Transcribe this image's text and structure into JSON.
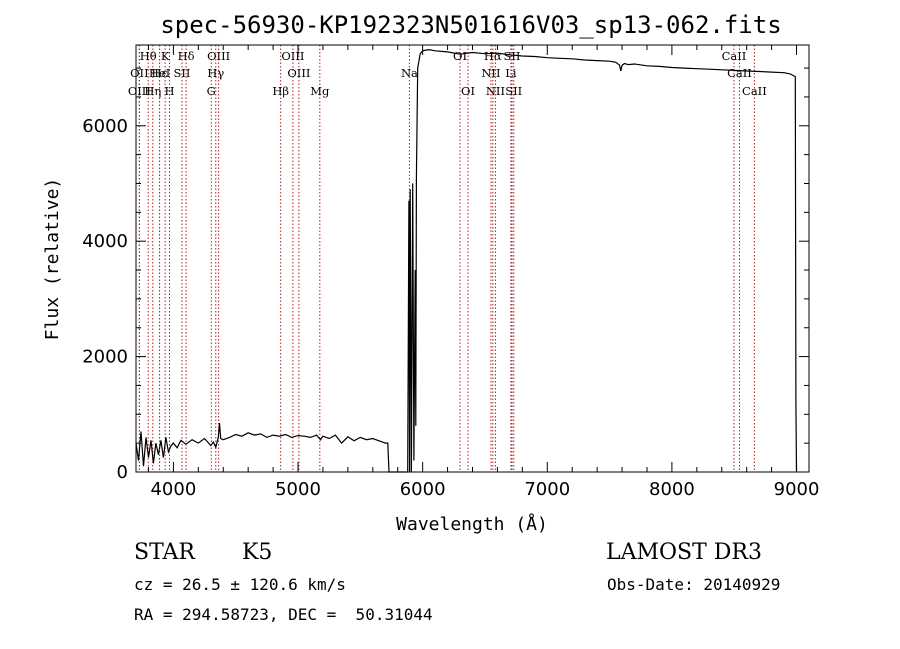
{
  "title": "spec-56930-KP192323N501616V03_sp13-062.fits",
  "footer": {
    "object_class": "STAR",
    "subclass": "K5",
    "survey": "LAMOST DR3",
    "cz": "cz = 26.5 ± 120.6 km/s",
    "obs_date": "Obs-Date: 20140929",
    "coords": "RA = 294.58723, DEC =  50.31044"
  },
  "chart_data": {
    "type": "line",
    "title": "spec-56930-KP192323N501616V03_sp13-062.fits",
    "xlabel": "Wavelength (Å)",
    "ylabel": "Flux (relative)",
    "xlim": [
      3700,
      9100
    ],
    "ylim": [
      0,
      7400
    ],
    "x_ticks": [
      4000,
      5000,
      6000,
      7000,
      8000,
      9000
    ],
    "y_ticks": [
      0,
      2000,
      4000,
      6000
    ],
    "x_tick_labels": [
      "4000",
      "5000",
      "6000",
      "7000",
      "8000",
      "9000"
    ],
    "y_tick_labels": [
      "0",
      "2000",
      "4000",
      "6000"
    ],
    "line_color": "#000000",
    "marker_color": "#b22222",
    "series": [
      {
        "x": [
          3700,
          3720,
          3740,
          3760,
          3780,
          3800,
          3820,
          3840,
          3860,
          3880,
          3900,
          3920,
          3940,
          3960,
          3980,
          4000,
          4030,
          4060,
          4100,
          4150,
          4200,
          4250,
          4300,
          4320,
          4340,
          4360,
          4370,
          4380,
          4400,
          4450,
          4500,
          4550,
          4600,
          4650,
          4700,
          4750,
          4800,
          4850,
          4900,
          4950,
          5000,
          5050,
          5100,
          5150,
          5180,
          5200,
          5250,
          5300,
          5350,
          5400,
          5450,
          5500,
          5550,
          5600,
          5650,
          5700,
          5720,
          5730,
          5740,
          5800,
          5850,
          5880,
          5890,
          5895,
          5900,
          5905,
          5910,
          5920,
          5930,
          5940,
          5945,
          5950,
          5960,
          5980,
          6000,
          6050,
          6100,
          6200,
          6300,
          6400,
          6500,
          6600,
          6700,
          6800,
          6900,
          7000,
          7100,
          7200,
          7300,
          7400,
          7500,
          7550,
          7580,
          7590,
          7600,
          7620,
          7650,
          7700,
          7800,
          7900,
          8000,
          8100,
          8200,
          8300,
          8400,
          8500,
          8600,
          8700,
          8800,
          8900,
          8950,
          8990,
          8995,
          9000
        ],
        "y": [
          500,
          200,
          700,
          100,
          600,
          250,
          550,
          150,
          500,
          300,
          550,
          250,
          600,
          350,
          450,
          500,
          420,
          550,
          480,
          560,
          500,
          580,
          460,
          520,
          430,
          600,
          850,
          580,
          560,
          600,
          650,
          620,
          680,
          640,
          660,
          600,
          640,
          620,
          650,
          600,
          630,
          620,
          600,
          640,
          560,
          620,
          580,
          640,
          500,
          610,
          540,
          600,
          560,
          580,
          540,
          500,
          500,
          0,
          0,
          0,
          0,
          0,
          4700,
          0,
          4900,
          2500,
          0,
          5000,
          200,
          3500,
          800,
          5100,
          7000,
          7250,
          7300,
          7320,
          7300,
          7280,
          7240,
          7270,
          7250,
          7260,
          7230,
          7210,
          7200,
          7180,
          7170,
          7160,
          7140,
          7130,
          7120,
          7100,
          7050,
          6950,
          7050,
          7080,
          7060,
          7070,
          7040,
          7030,
          7010,
          7000,
          6990,
          6980,
          6970,
          6960,
          6950,
          6940,
          6930,
          6920,
          6900,
          6850,
          1200,
          0
        ]
      }
    ],
    "lines": [
      {
        "label": "Hθ",
        "x": 3798,
        "row": 0
      },
      {
        "label": "OII",
        "x": 3727,
        "row": 1
      },
      {
        "label": "OIII",
        "x": 3727,
        "row": 2
      },
      {
        "label": "Hη",
        "x": 3835,
        "row": 2
      },
      {
        "label": "Hε",
        "x": 3889,
        "row": 1
      },
      {
        "label": "K",
        "x": 3934,
        "row": 0
      },
      {
        "label": "HeI",
        "x": 3889,
        "row": 1
      },
      {
        "label": "H",
        "x": 3969,
        "row": 2
      },
      {
        "label": "SII",
        "x": 4069,
        "row": 1
      },
      {
        "label": "Hδ",
        "x": 4102,
        "row": 0
      },
      {
        "label": "OIII",
        "x": 4363,
        "row": 0
      },
      {
        "label": "Hγ",
        "x": 4340,
        "row": 1
      },
      {
        "label": "G",
        "x": 4304,
        "row": 2
      },
      {
        "label": "OIII",
        "x": 4959,
        "row": 0
      },
      {
        "label": "OIII",
        "x": 5007,
        "row": 1
      },
      {
        "label": "Hβ",
        "x": 4861,
        "row": 2
      },
      {
        "label": "Mg",
        "x": 5175,
        "row": 2
      },
      {
        "label": "Na",
        "x": 5894,
        "row": 1
      },
      {
        "label": "OI",
        "x": 6300,
        "row": 0
      },
      {
        "label": "OI",
        "x": 6364,
        "row": 2
      },
      {
        "label": "Hα",
        "x": 6563,
        "row": 0
      },
      {
        "label": "NII",
        "x": 6548,
        "row": 1
      },
      {
        "label": "NII",
        "x": 6584,
        "row": 2
      },
      {
        "label": "SII",
        "x": 6717,
        "row": 0
      },
      {
        "label": "Li",
        "x": 6708,
        "row": 1
      },
      {
        "label": "SII",
        "x": 6731,
        "row": 2
      },
      {
        "label": "CaII",
        "x": 8498,
        "row": 0
      },
      {
        "label": "CaII",
        "x": 8542,
        "row": 1
      },
      {
        "label": "CaII",
        "x": 8662,
        "row": 2
      }
    ]
  }
}
